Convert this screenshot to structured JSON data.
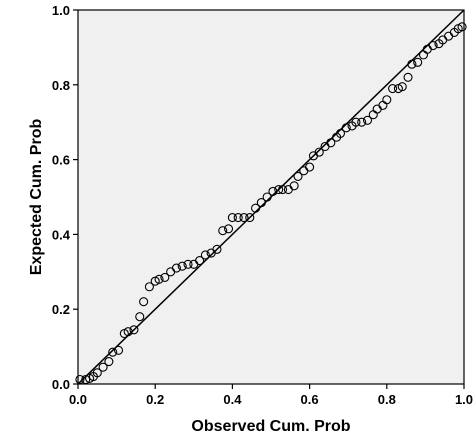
{
  "chart_data": {
    "type": "scatter",
    "title": "",
    "xlabel": "Observed Cum. Prob",
    "ylabel": "Expected Cum. Prob",
    "xlim": [
      0.0,
      1.0
    ],
    "ylim": [
      0.0,
      1.0
    ],
    "xticks": [
      "0.0",
      "0.2",
      "0.4",
      "0.6",
      "0.8",
      "1.0"
    ],
    "yticks": [
      "0.0",
      "0.2",
      "0.4",
      "0.6",
      "0.8",
      "1.0"
    ],
    "grid": false,
    "legend": "none",
    "plot_background": "#f0f0f0",
    "reference_line": {
      "x": [
        0.0,
        1.0
      ],
      "y": [
        0.0,
        1.0
      ]
    },
    "points": [
      [
        0.005,
        0.012
      ],
      [
        0.02,
        0.012
      ],
      [
        0.03,
        0.015
      ],
      [
        0.04,
        0.02
      ],
      [
        0.05,
        0.03
      ],
      [
        0.065,
        0.045
      ],
      [
        0.08,
        0.06
      ],
      [
        0.09,
        0.085
      ],
      [
        0.105,
        0.09
      ],
      [
        0.12,
        0.135
      ],
      [
        0.13,
        0.14
      ],
      [
        0.145,
        0.145
      ],
      [
        0.16,
        0.18
      ],
      [
        0.17,
        0.22
      ],
      [
        0.185,
        0.26
      ],
      [
        0.2,
        0.275
      ],
      [
        0.21,
        0.28
      ],
      [
        0.225,
        0.285
      ],
      [
        0.24,
        0.3
      ],
      [
        0.255,
        0.31
      ],
      [
        0.27,
        0.315
      ],
      [
        0.285,
        0.32
      ],
      [
        0.3,
        0.32
      ],
      [
        0.315,
        0.33
      ],
      [
        0.33,
        0.345
      ],
      [
        0.345,
        0.35
      ],
      [
        0.36,
        0.36
      ],
      [
        0.375,
        0.41
      ],
      [
        0.39,
        0.415
      ],
      [
        0.4,
        0.445
      ],
      [
        0.415,
        0.445
      ],
      [
        0.43,
        0.445
      ],
      [
        0.445,
        0.445
      ],
      [
        0.46,
        0.47
      ],
      [
        0.475,
        0.485
      ],
      [
        0.49,
        0.5
      ],
      [
        0.505,
        0.515
      ],
      [
        0.52,
        0.52
      ],
      [
        0.53,
        0.52
      ],
      [
        0.545,
        0.52
      ],
      [
        0.56,
        0.53
      ],
      [
        0.57,
        0.555
      ],
      [
        0.585,
        0.57
      ],
      [
        0.6,
        0.58
      ],
      [
        0.61,
        0.61
      ],
      [
        0.625,
        0.62
      ],
      [
        0.64,
        0.635
      ],
      [
        0.655,
        0.645
      ],
      [
        0.67,
        0.66
      ],
      [
        0.68,
        0.67
      ],
      [
        0.695,
        0.685
      ],
      [
        0.71,
        0.69
      ],
      [
        0.72,
        0.7
      ],
      [
        0.735,
        0.7
      ],
      [
        0.75,
        0.705
      ],
      [
        0.765,
        0.72
      ],
      [
        0.775,
        0.735
      ],
      [
        0.79,
        0.745
      ],
      [
        0.8,
        0.76
      ],
      [
        0.815,
        0.79
      ],
      [
        0.83,
        0.79
      ],
      [
        0.84,
        0.795
      ],
      [
        0.855,
        0.82
      ],
      [
        0.865,
        0.855
      ],
      [
        0.88,
        0.86
      ],
      [
        0.895,
        0.88
      ],
      [
        0.905,
        0.895
      ],
      [
        0.92,
        0.905
      ],
      [
        0.935,
        0.91
      ],
      [
        0.945,
        0.92
      ],
      [
        0.96,
        0.93
      ],
      [
        0.975,
        0.94
      ],
      [
        0.985,
        0.95
      ],
      [
        0.995,
        0.955
      ]
    ]
  }
}
